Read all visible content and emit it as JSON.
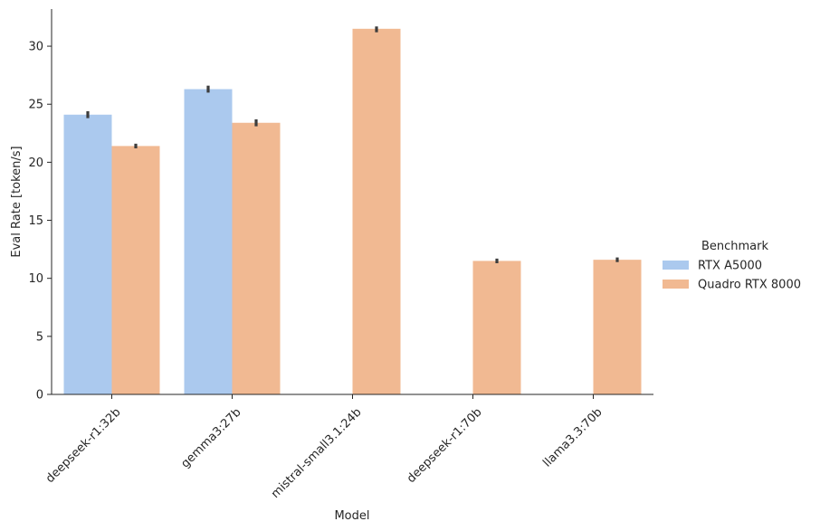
{
  "chart_data": {
    "type": "bar",
    "xlabel": "Model",
    "ylabel": "Eval Rate [token/s]",
    "ylim": [
      0,
      33.2
    ],
    "yticks": [
      0,
      5,
      10,
      15,
      20,
      25,
      30
    ],
    "categories": [
      "deepseek-r1:32b",
      "gemma3:27b",
      "mistral-small3.1:24b",
      "deepseek-r1:70b",
      "llama3.3:70b"
    ],
    "legend": {
      "title": "Benchmark",
      "placement": "right"
    },
    "series": [
      {
        "name": "RTX A5000",
        "color": "#abc9ee",
        "values": [
          24.1,
          26.3,
          null,
          null,
          null
        ],
        "ci": [
          [
            23.8,
            24.4
          ],
          [
            26.0,
            26.6
          ],
          null,
          null,
          null
        ]
      },
      {
        "name": "Quadro RTX 8000",
        "color": "#f1b992",
        "values": [
          21.4,
          23.4,
          31.5,
          11.5,
          11.6
        ],
        "ci": [
          [
            21.2,
            21.6
          ],
          [
            23.1,
            23.7
          ],
          [
            31.2,
            31.7
          ],
          [
            11.3,
            11.7
          ],
          [
            11.4,
            11.8
          ]
        ]
      }
    ]
  }
}
